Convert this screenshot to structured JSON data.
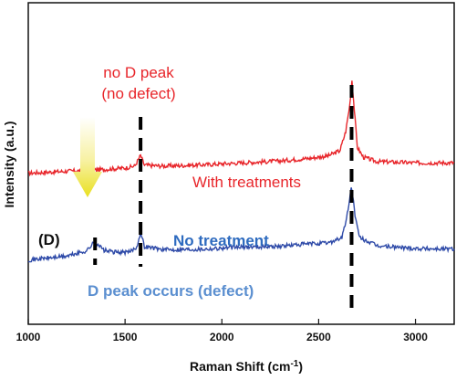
{
  "chart_data": {
    "type": "line",
    "title": "",
    "xlabel": "Raman Shift (cm",
    "xlabel_sup": "-1",
    "xlabel_close": ")",
    "ylabel": "Intensity (a.u.)",
    "xlim": [
      1000,
      3200
    ],
    "ylim": [
      0,
      100
    ],
    "y_ticks_shown": false,
    "xticks": [
      1000,
      1500,
      2000,
      2500,
      3000
    ],
    "grid": false,
    "series": [
      {
        "name": "With treatments",
        "color": "#e8262b",
        "points": [
          [
            1000,
            47
          ],
          [
            1100,
            47.3
          ],
          [
            1200,
            47.6
          ],
          [
            1300,
            47.8
          ],
          [
            1340,
            48
          ],
          [
            1400,
            48.2
          ],
          [
            1500,
            48.6
          ],
          [
            1550,
            49.2
          ],
          [
            1580,
            52.5
          ],
          [
            1600,
            49.5
          ],
          [
            1700,
            49.2
          ],
          [
            1900,
            49.6
          ],
          [
            2100,
            50.2
          ],
          [
            2300,
            50.8
          ],
          [
            2450,
            51.6
          ],
          [
            2550,
            52.4
          ],
          [
            2610,
            54
          ],
          [
            2640,
            60
          ],
          [
            2660,
            68
          ],
          [
            2672,
            76
          ],
          [
            2685,
            66
          ],
          [
            2700,
            55
          ],
          [
            2730,
            52
          ],
          [
            2800,
            50.6
          ],
          [
            3000,
            50.2
          ],
          [
            3200,
            50.2
          ]
        ]
      },
      {
        "name": "No treatment",
        "color": "#2e4aa8",
        "points": [
          [
            1000,
            20
          ],
          [
            1100,
            20.6
          ],
          [
            1200,
            21.2
          ],
          [
            1300,
            22.8
          ],
          [
            1345,
            25.8
          ],
          [
            1390,
            23
          ],
          [
            1450,
            22.4
          ],
          [
            1520,
            22.4
          ],
          [
            1560,
            24
          ],
          [
            1580,
            28.6
          ],
          [
            1600,
            24.2
          ],
          [
            1700,
            23.2
          ],
          [
            1900,
            23.4
          ],
          [
            2100,
            24
          ],
          [
            2300,
            24.3
          ],
          [
            2450,
            25
          ],
          [
            2550,
            25.3
          ],
          [
            2620,
            27
          ],
          [
            2645,
            33
          ],
          [
            2670,
            43
          ],
          [
            2690,
            33
          ],
          [
            2710,
            27
          ],
          [
            2800,
            24.4
          ],
          [
            3000,
            23.6
          ],
          [
            3200,
            23.4
          ]
        ]
      }
    ],
    "peak_marker_positions": [
      1345,
      1580,
      2670
    ],
    "annotations": {
      "no_d_line1": "no D peak",
      "no_d_line2": "(no defect)",
      "with_treatments": "With treatments",
      "d_label": "(D)",
      "no_treatment": "No treatment",
      "d_peak_occurs": "D peak occurs (defect)"
    },
    "annotation_colors": {
      "red": "#e8262b",
      "blue": "#2e6bbf",
      "lightblue": "#5b8fd0",
      "black": "#111111",
      "arrow": "#f2ea2a"
    }
  }
}
